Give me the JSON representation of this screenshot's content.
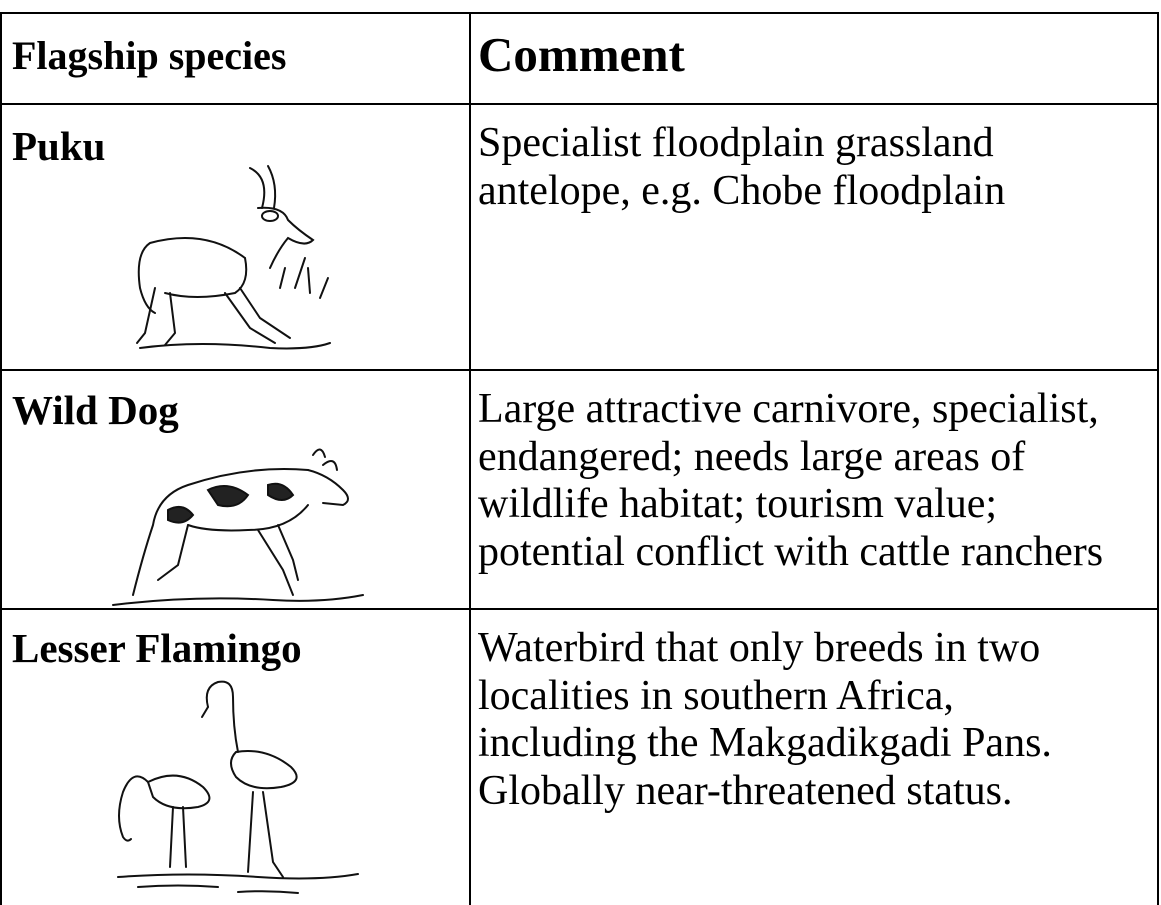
{
  "table": {
    "header": [
      "Flagship species",
      "Comment"
    ],
    "rows": [
      {
        "species": "Puku",
        "comment": [
          "Specialist floodplain grassland",
          "antelope, e.g. Chobe floodplain"
        ]
      },
      {
        "species": "Wild Dog",
        "comment": [
          "Large attractive carnivore, specialist,",
          "endangered; needs large areas of",
          "wildlife habitat; tourism value;",
          "potential conflict with cattle ranchers"
        ]
      },
      {
        "species": "Lesser Flamingo",
        "comment": [
          "Waterbird that only breeds in two",
          "localities in southern Africa,",
          "including the Makgadikgadi Pans.",
          "Globally near-threatened status."
        ]
      }
    ]
  }
}
